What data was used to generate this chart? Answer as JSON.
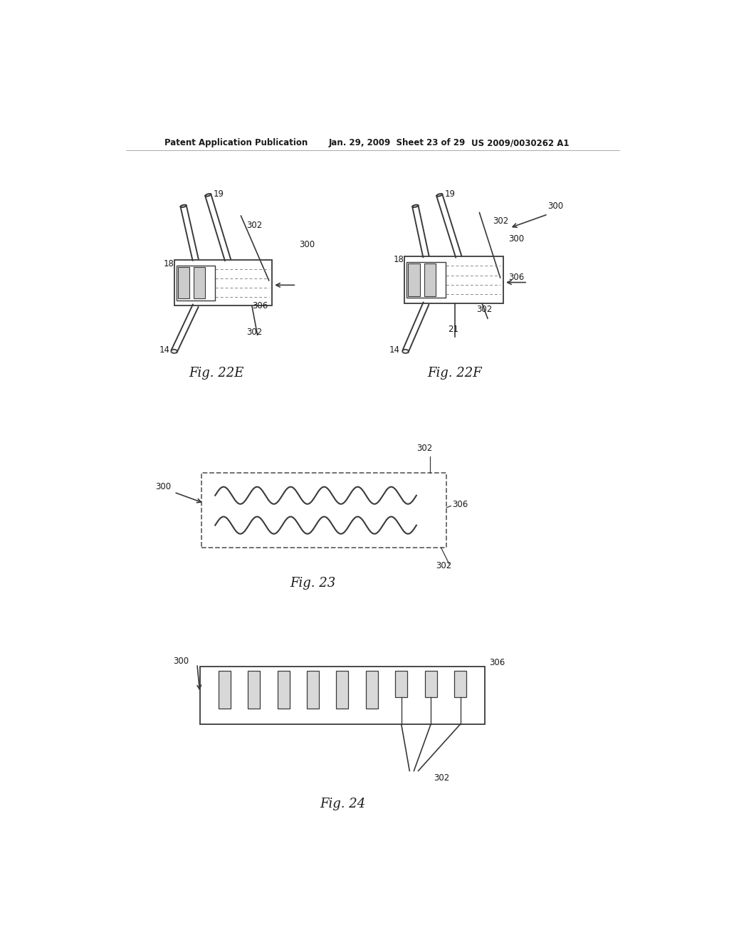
{
  "bg_color": "#ffffff",
  "header_left": "Patent Application Publication",
  "header_mid": "Jan. 29, 2009  Sheet 23 of 29",
  "header_right": "US 2009/0030262 A1",
  "fig22e_label": "Fig. 22E",
  "fig22f_label": "Fig. 22F",
  "fig23_label": "Fig. 23",
  "fig24_label": "Fig. 24",
  "line_color": "#3a3a3a",
  "label_color": "#1a1a1a",
  "font_size_header": 8.5,
  "font_size_fig": 13,
  "font_size_label": 8.5
}
